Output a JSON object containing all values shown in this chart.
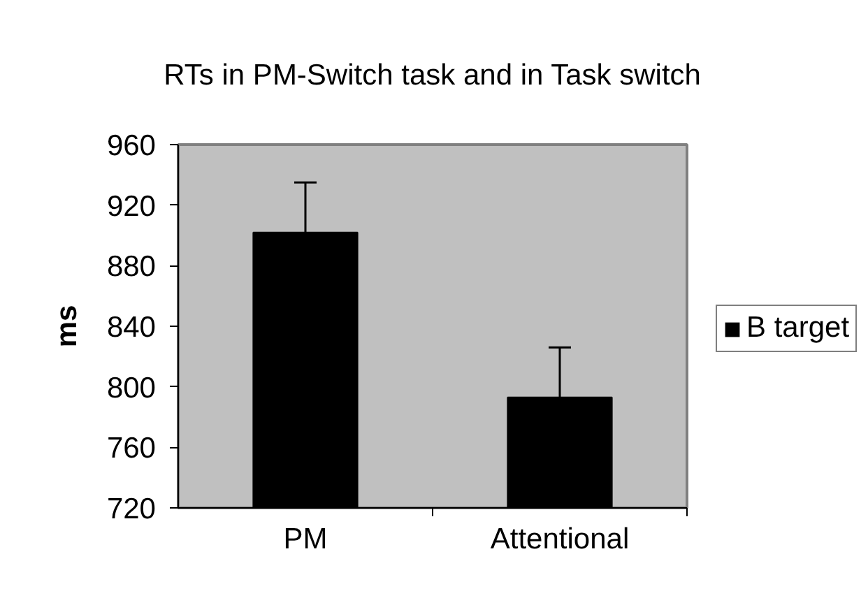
{
  "chart_data": {
    "type": "bar",
    "title": "RTs in PM-Switch task and in Task switch",
    "ylabel": "ms",
    "categories": [
      "PM",
      "Attentional"
    ],
    "series": [
      {
        "name": "B target",
        "color": "#000000",
        "values": [
          902,
          793
        ],
        "errors": [
          [
            902,
            935
          ],
          [
            793,
            826
          ]
        ]
      }
    ],
    "ylim": [
      720,
      960
    ],
    "yticks": [
      720,
      760,
      800,
      840,
      880,
      920,
      960
    ],
    "grid": false,
    "legend": "right"
  }
}
